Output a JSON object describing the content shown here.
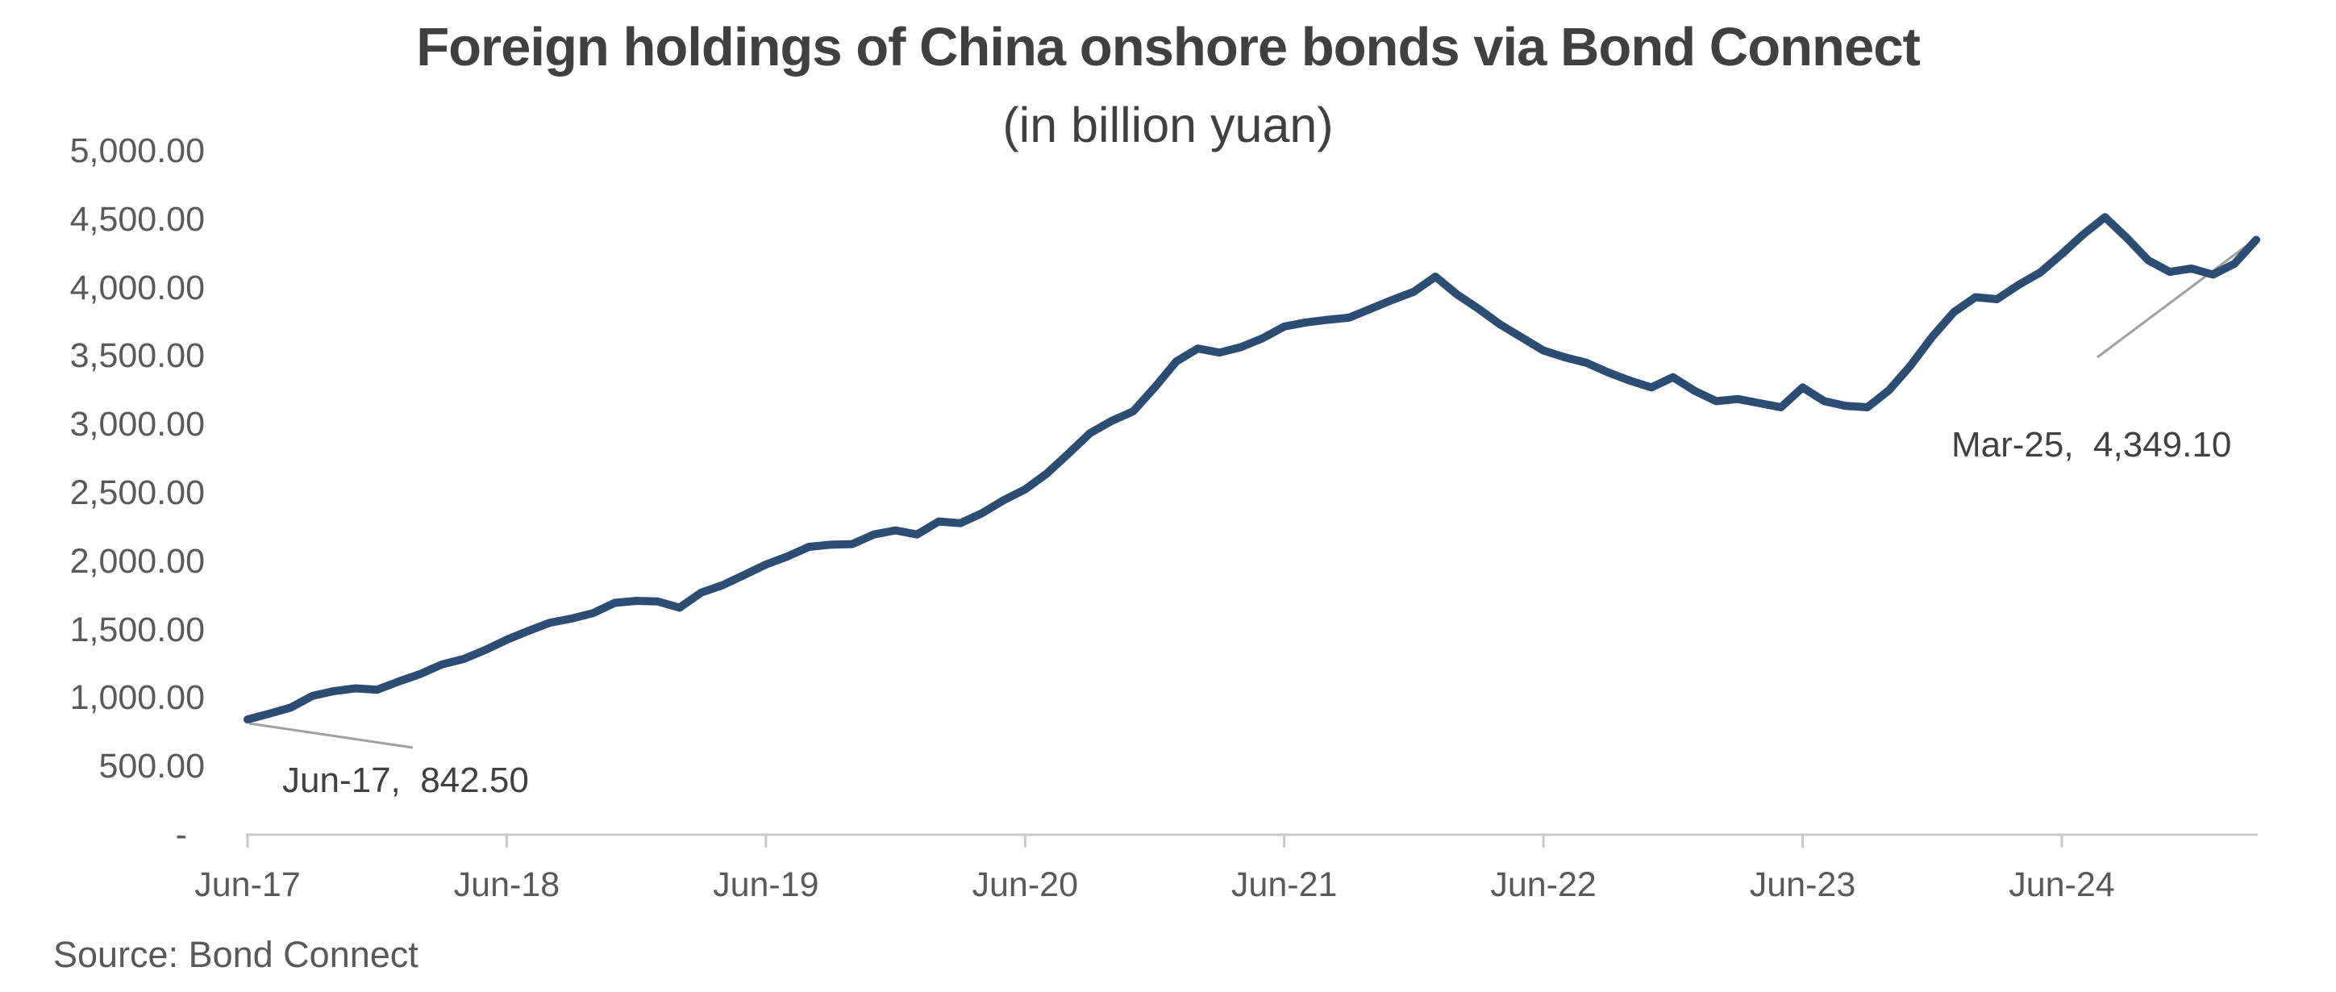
{
  "title": "Foreign holdings of China onshore bonds via Bond Connect",
  "subtitle": "(in billion yuan)",
  "source_note": "Source: Bond Connect",
  "annotations": {
    "jun17": {
      "text": "Jun-17,  842.50"
    },
    "mar25": {
      "text": "Mar-25,  4,349.10"
    }
  },
  "colors": {
    "line": "#2B4D73",
    "axis": "#C9C9C9",
    "leader": "#A0A0A0",
    "title_text": "#404040",
    "axis_text": "#595959",
    "annotation_text": "#404040",
    "background": "#FFFFFF"
  },
  "y_axis": {
    "ticks": [
      {
        "value": 5000,
        "label": "5,000.00"
      },
      {
        "value": 4500,
        "label": "4,500.00"
      },
      {
        "value": 4000,
        "label": "4,000.00"
      },
      {
        "value": 3500,
        "label": "3,500.00"
      },
      {
        "value": 3000,
        "label": "3,000.00"
      },
      {
        "value": 2500,
        "label": "2,500.00"
      },
      {
        "value": 2000,
        "label": "2,000.00"
      },
      {
        "value": 1500,
        "label": "1,500.00"
      },
      {
        "value": 1000,
        "label": "1,000.00"
      },
      {
        "value": 500,
        "label": "500.00"
      },
      {
        "value": 0,
        "label": "-"
      }
    ]
  },
  "x_axis": {
    "ticks": [
      {
        "month_index": 0,
        "label": "Jun-17"
      },
      {
        "month_index": 12,
        "label": "Jun-18"
      },
      {
        "month_index": 24,
        "label": "Jun-19"
      },
      {
        "month_index": 36,
        "label": "Jun-20"
      },
      {
        "month_index": 48,
        "label": "Jun-21"
      },
      {
        "month_index": 60,
        "label": "Jun-22"
      },
      {
        "month_index": 72,
        "label": "Jun-23"
      },
      {
        "month_index": 84,
        "label": "Jun-24"
      }
    ]
  },
  "chart_data": {
    "type": "line",
    "title": "Foreign holdings of China onshore bonds via Bond Connect",
    "subtitle": "(in billion yuan)",
    "unit": "billion yuan",
    "ylim": [
      0,
      5000
    ],
    "ytick_interval": 500,
    "grid": false,
    "legend": "none",
    "xtick_labels_shown": [
      "Jun-17",
      "Jun-18",
      "Jun-19",
      "Jun-20",
      "Jun-21",
      "Jun-22",
      "Jun-23",
      "Jun-24"
    ],
    "callouts": [
      {
        "x": "Jun-17",
        "value": 842.5,
        "label": "Jun-17,  842.50"
      },
      {
        "x": "Mar-25",
        "value": 4349.1,
        "label": "Mar-25,  4,349.10"
      }
    ],
    "series": [
      {
        "name": "Foreign holdings of China onshore bonds",
        "color": "#2B4D73",
        "x": [
          "Jun-17",
          "Jul-17",
          "Aug-17",
          "Sep-17",
          "Oct-17",
          "Nov-17",
          "Dec-17",
          "Jan-18",
          "Feb-18",
          "Mar-18",
          "Apr-18",
          "May-18",
          "Jun-18",
          "Jul-18",
          "Aug-18",
          "Sep-18",
          "Oct-18",
          "Nov-18",
          "Dec-18",
          "Jan-19",
          "Feb-19",
          "Mar-19",
          "Apr-19",
          "May-19",
          "Jun-19",
          "Jul-19",
          "Aug-19",
          "Sep-19",
          "Oct-19",
          "Nov-19",
          "Dec-19",
          "Jan-20",
          "Feb-20",
          "Mar-20",
          "Apr-20",
          "May-20",
          "Jun-20",
          "Jul-20",
          "Aug-20",
          "Sep-20",
          "Oct-20",
          "Nov-20",
          "Dec-20",
          "Jan-21",
          "Feb-21",
          "Mar-21",
          "Apr-21",
          "May-21",
          "Jun-21",
          "Jul-21",
          "Aug-21",
          "Sep-21",
          "Oct-21",
          "Nov-21",
          "Dec-21",
          "Jan-22",
          "Feb-22",
          "Mar-22",
          "Apr-22",
          "May-22",
          "Jun-22",
          "Jul-22",
          "Aug-22",
          "Sep-22",
          "Oct-22",
          "Nov-22",
          "Dec-22",
          "Jan-23",
          "Feb-23",
          "Mar-23",
          "Apr-23",
          "May-23",
          "Jun-23",
          "Jul-23",
          "Aug-23",
          "Sep-23",
          "Oct-23",
          "Nov-23",
          "Dec-23",
          "Jan-24",
          "Feb-24",
          "Mar-24",
          "Apr-24",
          "May-24",
          "Jun-24",
          "Jul-24",
          "Aug-24",
          "Sep-24",
          "Oct-24",
          "Nov-24",
          "Dec-24",
          "Jan-25",
          "Feb-25",
          "Mar-25"
        ],
        "values": [
          842.5,
          885,
          930,
          1015,
          1050,
          1070,
          1060,
          1120,
          1175,
          1245,
          1285,
          1350,
          1425,
          1490,
          1550,
          1580,
          1620,
          1695,
          1710,
          1705,
          1660,
          1770,
          1825,
          1900,
          1975,
          2035,
          2105,
          2120,
          2125,
          2195,
          2225,
          2195,
          2290,
          2278,
          2350,
          2445,
          2525,
          2640,
          2785,
          2935,
          3025,
          3095,
          3270,
          3460,
          3555,
          3525,
          3565,
          3630,
          3715,
          3745,
          3765,
          3780,
          3845,
          3910,
          3970,
          4080,
          3950,
          3845,
          3730,
          3635,
          3540,
          3490,
          3450,
          3380,
          3320,
          3270,
          3345,
          3245,
          3170,
          3185,
          3155,
          3125,
          3270,
          3170,
          3135,
          3125,
          3250,
          3430,
          3640,
          3820,
          3930,
          3915,
          4020,
          4110,
          4245,
          4390,
          4515,
          4365,
          4200,
          4115,
          4140,
          4095,
          4175,
          4349.1
        ]
      }
    ]
  }
}
